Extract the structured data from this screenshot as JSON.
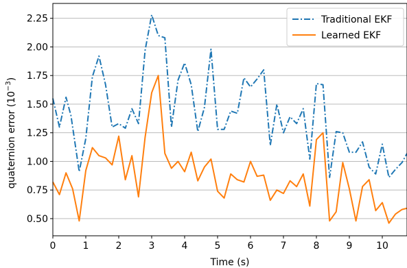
{
  "chart_data": {
    "type": "line",
    "xlabel": "Time (s)",
    "ylabel_main": "quaternion error (10",
    "ylabel_exp": "−3",
    "ylabel_close": ")",
    "xlim": [
      0,
      10.75
    ],
    "ylim": [
      0.35,
      2.38
    ],
    "xticks": [
      0,
      1,
      2,
      3,
      4,
      5,
      6,
      7,
      8,
      9,
      10
    ],
    "xtick_labels": [
      "0",
      "1",
      "2",
      "3",
      "4",
      "5",
      "6",
      "7",
      "8",
      "9",
      "10"
    ],
    "yticks": [
      0.5,
      0.75,
      1.0,
      1.25,
      1.5,
      1.75,
      2.0,
      2.25
    ],
    "ytick_labels": [
      "0.50",
      "0.75",
      "1.00",
      "1.25",
      "1.50",
      "1.75",
      "2.00",
      "2.25"
    ],
    "grid": "horizontal",
    "legend_position": "top-right",
    "series": [
      {
        "name": "Traditional EKF",
        "color": "#1f77b4",
        "style": "dashdot",
        "x": [
          0.0,
          0.2,
          0.4,
          0.55,
          0.8,
          1.0,
          1.2,
          1.4,
          1.6,
          1.8,
          2.0,
          2.2,
          2.4,
          2.6,
          2.8,
          3.0,
          3.2,
          3.4,
          3.6,
          3.8,
          4.0,
          4.2,
          4.4,
          4.6,
          4.8,
          5.0,
          5.2,
          5.4,
          5.6,
          5.8,
          6.0,
          6.2,
          6.4,
          6.6,
          6.8,
          7.0,
          7.2,
          7.4,
          7.6,
          7.8,
          8.0,
          8.2,
          8.4,
          8.6,
          8.8,
          9.0,
          9.2,
          9.4,
          9.6,
          9.8,
          10.0,
          10.2,
          10.4,
          10.6,
          10.75
        ],
        "y": [
          1.55,
          1.3,
          1.56,
          1.4,
          0.91,
          1.2,
          1.74,
          1.92,
          1.67,
          1.3,
          1.33,
          1.29,
          1.46,
          1.33,
          1.97,
          2.28,
          2.1,
          2.08,
          1.3,
          1.71,
          1.86,
          1.67,
          1.26,
          1.47,
          1.98,
          1.28,
          1.28,
          1.44,
          1.42,
          1.73,
          1.65,
          1.72,
          1.8,
          1.14,
          1.5,
          1.25,
          1.39,
          1.33,
          1.46,
          1.02,
          1.68,
          1.67,
          0.86,
          1.26,
          1.25,
          1.08,
          1.08,
          1.17,
          0.95,
          0.89,
          1.15,
          0.86,
          0.93,
          0.99,
          1.07
        ]
      },
      {
        "name": "Learned EKF",
        "color": "#ff7f0e",
        "style": "solid",
        "x": [
          0.0,
          0.2,
          0.4,
          0.6,
          0.8,
          1.0,
          1.2,
          1.4,
          1.6,
          1.8,
          2.0,
          2.2,
          2.4,
          2.6,
          2.8,
          3.0,
          3.2,
          3.4,
          3.6,
          3.8,
          4.0,
          4.2,
          4.4,
          4.6,
          4.8,
          5.0,
          5.2,
          5.4,
          5.6,
          5.8,
          6.0,
          6.2,
          6.4,
          6.6,
          6.8,
          7.0,
          7.2,
          7.4,
          7.6,
          7.8,
          8.0,
          8.2,
          8.4,
          8.6,
          8.8,
          9.0,
          9.2,
          9.4,
          9.6,
          9.8,
          10.0,
          10.2,
          10.4,
          10.6,
          10.75
        ],
        "y": [
          0.82,
          0.71,
          0.9,
          0.76,
          0.48,
          0.92,
          1.12,
          1.05,
          1.03,
          0.97,
          1.22,
          0.84,
          1.05,
          0.69,
          1.21,
          1.6,
          1.75,
          1.07,
          0.94,
          1.0,
          0.91,
          1.08,
          0.83,
          0.95,
          1.02,
          0.74,
          0.68,
          0.89,
          0.84,
          0.82,
          1.0,
          0.87,
          0.88,
          0.66,
          0.75,
          0.72,
          0.83,
          0.78,
          0.89,
          0.61,
          1.19,
          1.25,
          0.48,
          0.56,
          0.99,
          0.76,
          0.48,
          0.78,
          0.84,
          0.57,
          0.64,
          0.46,
          0.54,
          0.58,
          0.59
        ]
      }
    ]
  }
}
